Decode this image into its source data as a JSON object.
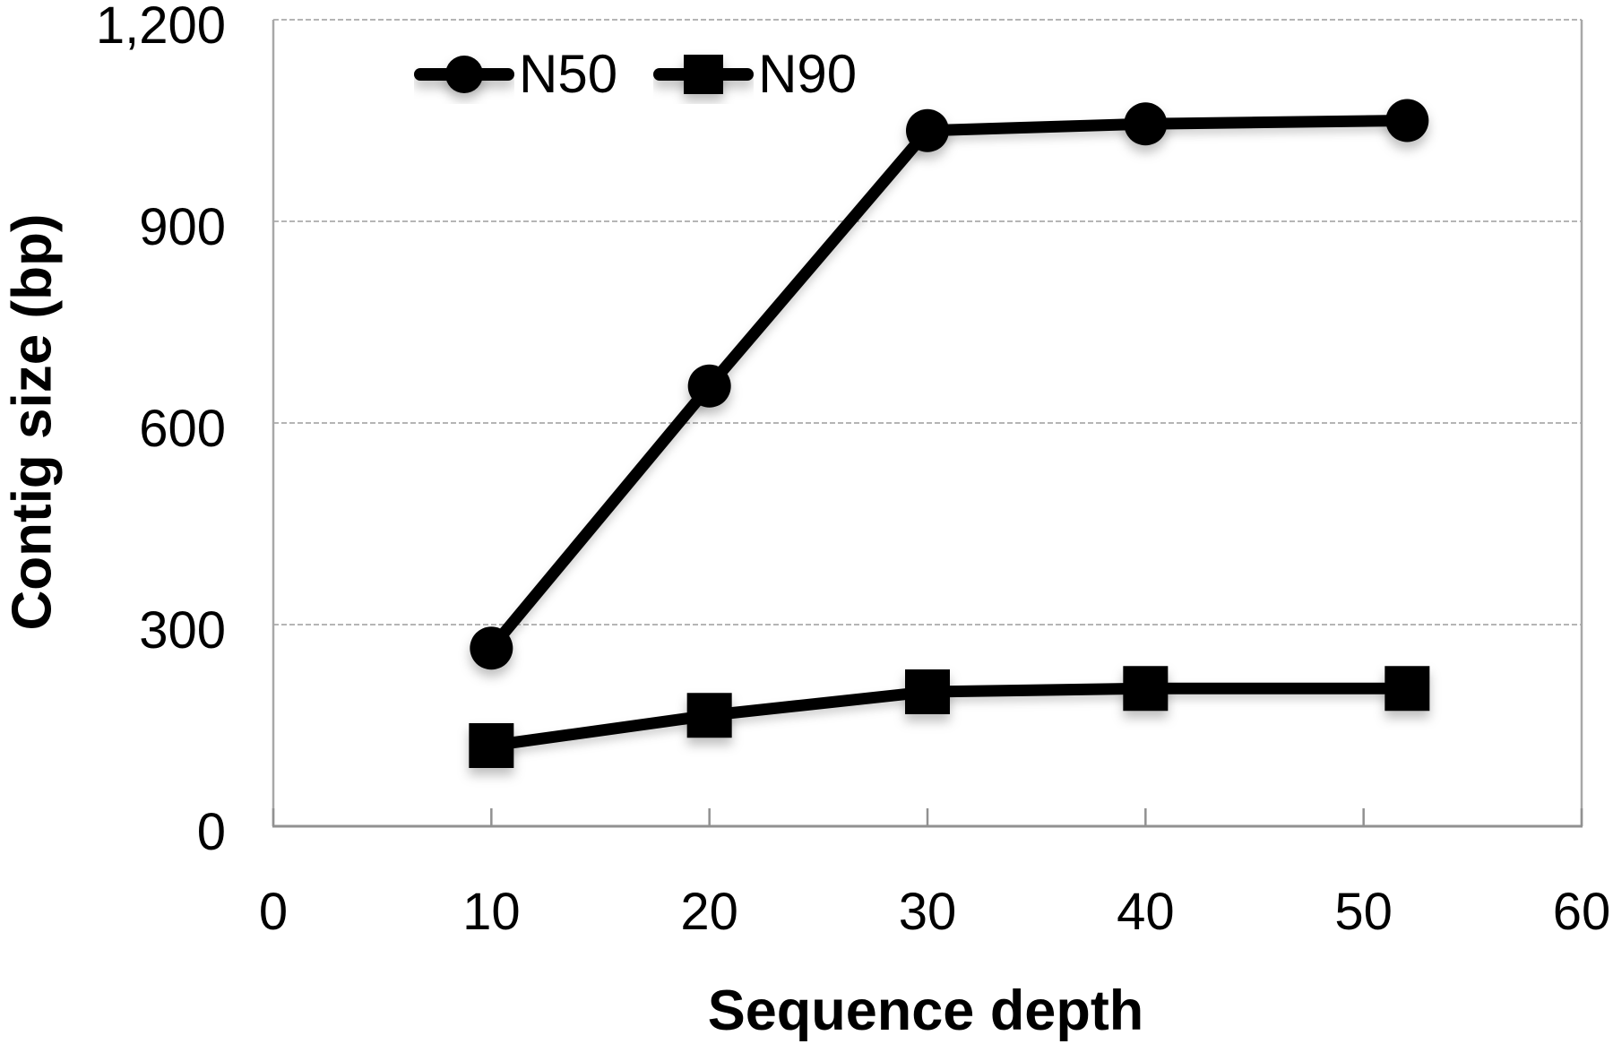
{
  "chart_data": {
    "type": "line",
    "title": "",
    "xlabel": "Sequence depth",
    "ylabel": "Contig size (bp)",
    "xlim": [
      0,
      60
    ],
    "ylim": [
      0,
      1200
    ],
    "x_ticks": [
      0,
      10,
      20,
      30,
      40,
      50,
      60
    ],
    "x_tick_labels": [
      "0",
      "10",
      "20",
      "30",
      "40",
      "50",
      "60"
    ],
    "y_ticks": [
      0,
      300,
      600,
      900,
      1200
    ],
    "y_tick_labels": [
      "0",
      "300",
      "600",
      "900",
      "1,200"
    ],
    "grid": "horizontal-dashed",
    "legend_position": "top-inside",
    "series": [
      {
        "name": "N50",
        "marker": "circle",
        "color": "#000000",
        "x": [
          10,
          20,
          30,
          40,
          52
        ],
        "values": [
          265,
          655,
          1035,
          1045,
          1050
        ]
      },
      {
        "name": "N90",
        "marker": "square",
        "color": "#000000",
        "x": [
          10,
          20,
          30,
          40,
          52
        ],
        "values": [
          120,
          165,
          200,
          205,
          205
        ]
      }
    ],
    "colors": {
      "gridline": "#b5b5b5",
      "axis": "#919191",
      "border": "#a8a8a8",
      "text": "#000000"
    }
  }
}
